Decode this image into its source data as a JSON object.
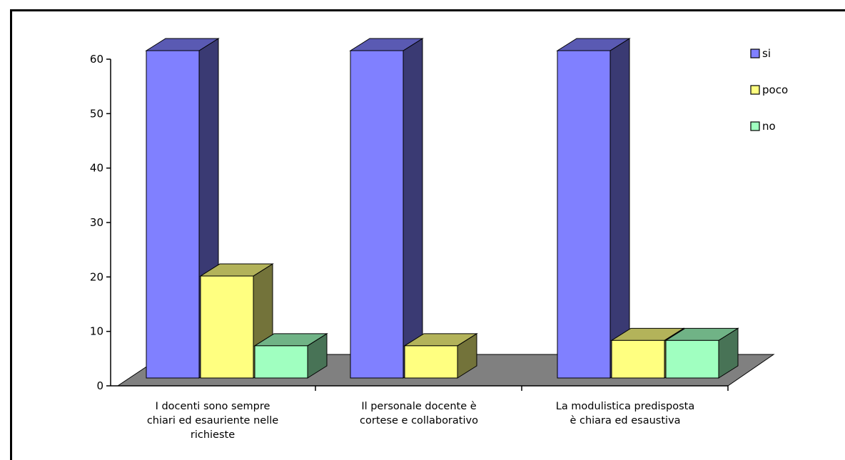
{
  "chart_data": {
    "type": "bar",
    "variant": "3d-clustered-column",
    "categories": [
      [
        "I docenti sono sempre",
        "chiari ed esauriente nelle",
        "richieste"
      ],
      [
        "Il personale docente è",
        "cortese e collaborativo"
      ],
      [
        "La modulistica predisposta",
        "è chiara ed esaustiva"
      ]
    ],
    "series": [
      {
        "name": "si",
        "values": [
          61,
          61,
          61
        ],
        "color": "#8080ff"
      },
      {
        "name": "poco",
        "values": [
          19,
          6,
          7
        ],
        "color": "#ffff80"
      },
      {
        "name": "no",
        "values": [
          6,
          0,
          7
        ],
        "color": "#a0ffc0"
      }
    ],
    "ylim": [
      0,
      60
    ],
    "yticks": [
      0,
      10,
      20,
      30,
      40,
      50,
      60
    ],
    "title": "",
    "xlabel": "",
    "ylabel": "",
    "legend_placement": "top-right",
    "grid": false,
    "floor_color": "#808080"
  }
}
